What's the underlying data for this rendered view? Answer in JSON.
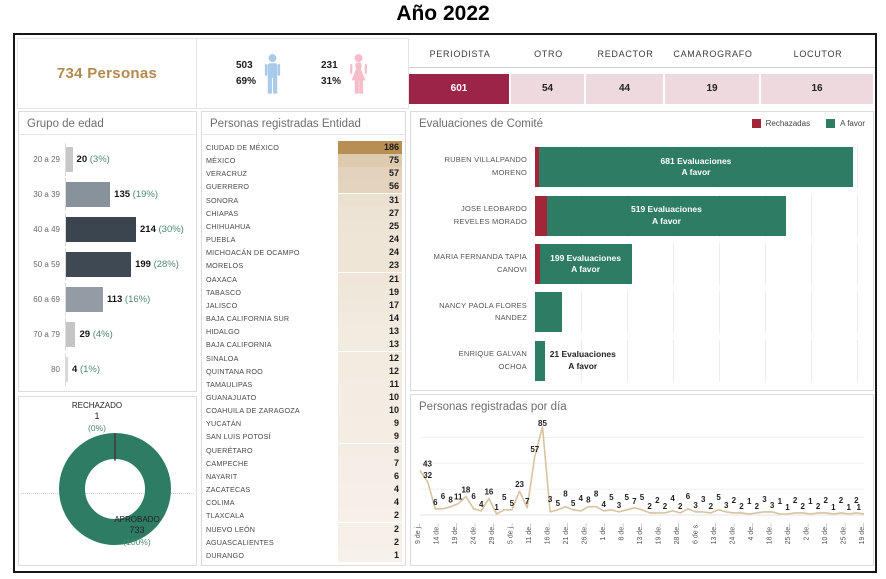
{
  "title": "Año 2022",
  "kpi": {
    "total": "734 Personas",
    "gender": {
      "male": {
        "count": "503",
        "pct": "69%"
      },
      "female": {
        "count": "231",
        "pct": "31%"
      }
    }
  },
  "colors": {
    "gold": "#b28a50",
    "maroon": "#9d2449",
    "pink_cell": "#eedade",
    "green": "#2e7c64",
    "red": "#a32638",
    "green_text": "#4e8a70",
    "tan": "#b78e54",
    "line": "#d8c3a1",
    "male": "#a9cbe9",
    "female": "#f7bcc9",
    "slice_line": "#3f3f3f"
  },
  "chart_data": [
    {
      "type": "bar",
      "title": "Grupo de edad",
      "orientation": "horizontal",
      "categories": [
        "20 a 29",
        "30 a 39",
        "40 a 49",
        "50 a 59",
        "60 a 69",
        "70 a 79",
        "80"
      ],
      "values": [
        20,
        135,
        214,
        199,
        113,
        29,
        4
      ],
      "pct_labels": [
        "(3%)",
        "(19%)",
        "(30%)",
        "(28%)",
        "(16%)",
        "(4%)",
        "(1%)"
      ],
      "bar_colors": [
        "#c7c7c7",
        "#87929c",
        "#3b4550",
        "#3f4954",
        "#939ba4",
        "#c3c5c7",
        "#d8d8d8"
      ],
      "xlim": [
        0,
        214
      ]
    },
    {
      "type": "pie",
      "slices": [
        {
          "label": "APROBADO",
          "value": "733",
          "pct": "(100%)"
        },
        {
          "label": "RECHAZADO",
          "value": "1",
          "pct": "(0%)"
        }
      ]
    },
    {
      "type": "table",
      "title": "Personas registradas Entidad",
      "columns": [
        "Entidad",
        "Personas"
      ],
      "max": 186,
      "rows": [
        {
          "name": "CIUDAD DE MÉXICO",
          "value": 186
        },
        {
          "name": "MÉXICO",
          "value": 75
        },
        {
          "name": "VERACRUZ",
          "value": 57
        },
        {
          "name": "GUERRERO",
          "value": 56
        },
        {
          "name": "SONORA",
          "value": 31
        },
        {
          "name": "CHIAPAS",
          "value": 27
        },
        {
          "name": "CHIHUAHUA",
          "value": 25
        },
        {
          "name": "PUEBLA",
          "value": 24
        },
        {
          "name": "MICHOACÁN DE OCAMPO",
          "value": 24
        },
        {
          "name": "MORELOS",
          "value": 23
        },
        {
          "name": "OAXACA",
          "value": 21
        },
        {
          "name": "TABASCO",
          "value": 19
        },
        {
          "name": "JALISCO",
          "value": 17
        },
        {
          "name": "BAJA CALIFORNIA SUR",
          "value": 14
        },
        {
          "name": "HIDALGO",
          "value": 13
        },
        {
          "name": "BAJA CALIFORNIA",
          "value": 13
        },
        {
          "name": "SINALOA",
          "value": 12
        },
        {
          "name": "QUINTANA ROO",
          "value": 12
        },
        {
          "name": "TAMAULIPAS",
          "value": 11
        },
        {
          "name": "GUANAJUATO",
          "value": 10
        },
        {
          "name": "COAHUILA DE ZARAGOZA",
          "value": 10
        },
        {
          "name": "YUCATÁN",
          "value": 9
        },
        {
          "name": "SAN LUIS POTOSÍ",
          "value": 9
        },
        {
          "name": "QUERÉTARO",
          "value": 8
        },
        {
          "name": "CAMPECHE",
          "value": 7
        },
        {
          "name": "NAYARIT",
          "value": 6
        },
        {
          "name": "ZACATECAS",
          "value": 4
        },
        {
          "name": "COLIMA",
          "value": 4
        },
        {
          "name": "TLAXCALA",
          "value": 2
        },
        {
          "name": "NUEVO LEÓN",
          "value": 2
        },
        {
          "name": "AGUASCALIENTES",
          "value": 2
        },
        {
          "name": "DURANGO",
          "value": 1
        }
      ]
    },
    {
      "type": "bar",
      "title": "Evaluaciones de Comité",
      "orientation": "horizontal",
      "legend": [
        "Rechazadas",
        "A favor"
      ],
      "rows": [
        {
          "name_lines": [
            "RUBEN VILLALPANDO",
            "MORENO"
          ],
          "rechazadas": 8,
          "afavor": 681,
          "label_lines": [
            "681 Evaluaciones",
            "A favor"
          ],
          "label_pos": "inside"
        },
        {
          "name_lines": [
            "JOSE LEOBARDO",
            "REVELES MORADO"
          ],
          "rechazadas": 25,
          "afavor": 519,
          "label_lines": [
            "519 Evaluaciones",
            "A favor"
          ],
          "label_pos": "inside"
        },
        {
          "name_lines": [
            "MARIA FERNANDA TAPIA",
            "CANOVI"
          ],
          "rechazadas": 10,
          "afavor": 199,
          "label_lines": [
            "199 Evaluaciones",
            "A favor"
          ],
          "label_pos": "inside"
        },
        {
          "name_lines": [
            "NANCY PAOLA FLORES",
            "NANDEZ"
          ],
          "rechazadas": 0,
          "afavor": 58,
          "label_lines": [],
          "label_pos": "none"
        },
        {
          "name_lines": [
            "ENRIQUE GALVAN",
            "OCHOA"
          ],
          "rechazadas": 0,
          "afavor": 21,
          "label_lines": [
            "21 Evaluaciones",
            "A favor"
          ],
          "label_pos": "outside"
        }
      ]
    },
    {
      "type": "line",
      "title": "Personas registradas por día",
      "values": [
        43,
        32,
        6,
        6,
        8,
        11,
        18,
        6,
        4,
        16,
        1,
        5,
        5,
        23,
        7,
        57,
        85,
        3,
        5,
        8,
        5,
        4,
        8,
        8,
        4,
        5,
        3,
        5,
        7,
        5,
        2,
        2,
        2,
        4,
        2,
        6,
        3,
        3,
        2,
        5,
        3,
        2,
        2,
        1,
        2,
        3,
        3,
        1,
        1,
        2,
        2,
        1,
        2,
        2,
        1,
        2,
        1,
        2,
        1
      ],
      "x_labels": [
        "9 de j..",
        "14 de..",
        "19 de..",
        "24 de..",
        "29 de..",
        "5 de j..",
        "11 de..",
        "16 de..",
        "21 de..",
        "26 de..",
        "1 de..",
        "8 de..",
        "13 de..",
        "19 de..",
        "28 de..",
        "6 de s.",
        "13 de..",
        "24 de..",
        "4 de..",
        "18 de..",
        "25 de..",
        "2 de..",
        "10 de..",
        "25 de..",
        "19 de.."
      ],
      "ylim": [
        0,
        85
      ]
    },
    {
      "type": "table",
      "cells": [
        {
          "label": "PERIODISTA",
          "value": "601",
          "highlight": true
        },
        {
          "label": "OTRO",
          "value": "54",
          "highlight": false
        },
        {
          "label": "REDACTOR",
          "value": "44",
          "highlight": false
        },
        {
          "label": "CAMAROGRAFO",
          "value": "19",
          "highlight": false
        },
        {
          "label": "LOCUTOR",
          "value": "16",
          "highlight": false
        }
      ]
    }
  ]
}
